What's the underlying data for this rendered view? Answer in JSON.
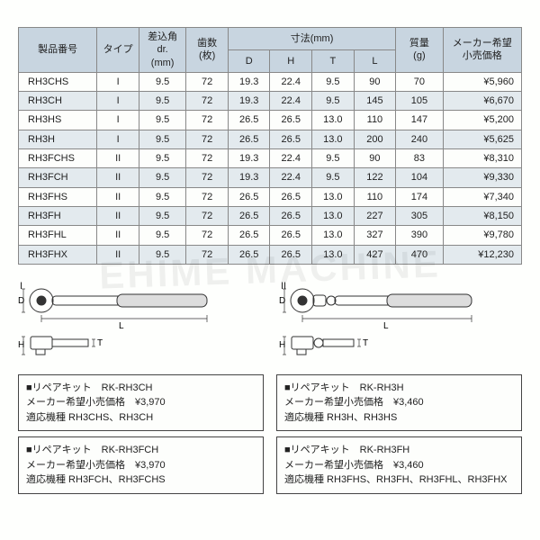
{
  "colors": {
    "header_bg": "#c8d5e0",
    "stripe_bg": "#e3eaee",
    "row_bg": "#fdfefc",
    "border": "#888888",
    "text": "#222222",
    "page_bg": "#fefffd",
    "watermark": "rgba(0,0,0,0.06)"
  },
  "watermark_text": "EHIME MACHINE",
  "table": {
    "col_widths_pct": [
      14,
      8,
      9,
      8,
      8,
      8,
      8,
      8,
      9,
      14
    ],
    "headers": {
      "pn": "製品番号",
      "type": "タイプ",
      "drive": "差込角\ndr.\n(mm)",
      "teeth": "歯数\n(枚)",
      "dims": "寸法(mm)",
      "D": "D",
      "H": "H",
      "T": "T",
      "L": "L",
      "mass": "質量\n(g)",
      "price": "メーカー希望\n小売価格"
    },
    "rows": [
      {
        "pn": "RH3CHS",
        "type": "I",
        "drive": "9.5",
        "teeth": "72",
        "D": "19.3",
        "H": "22.4",
        "T": "9.5",
        "L": "90",
        "mass": "70",
        "price": "¥5,960"
      },
      {
        "pn": "RH3CH",
        "type": "I",
        "drive": "9.5",
        "teeth": "72",
        "D": "19.3",
        "H": "22.4",
        "T": "9.5",
        "L": "145",
        "mass": "105",
        "price": "¥6,670"
      },
      {
        "pn": "RH3HS",
        "type": "I",
        "drive": "9.5",
        "teeth": "72",
        "D": "26.5",
        "H": "26.5",
        "T": "13.0",
        "L": "110",
        "mass": "147",
        "price": "¥5,200"
      },
      {
        "pn": "RH3H",
        "type": "I",
        "drive": "9.5",
        "teeth": "72",
        "D": "26.5",
        "H": "26.5",
        "T": "13.0",
        "L": "200",
        "mass": "240",
        "price": "¥5,625"
      },
      {
        "pn": "RH3FCHS",
        "type": "II",
        "drive": "9.5",
        "teeth": "72",
        "D": "19.3",
        "H": "22.4",
        "T": "9.5",
        "L": "90",
        "mass": "83",
        "price": "¥8,310"
      },
      {
        "pn": "RH3FCH",
        "type": "II",
        "drive": "9.5",
        "teeth": "72",
        "D": "19.3",
        "H": "22.4",
        "T": "9.5",
        "L": "122",
        "mass": "104",
        "price": "¥9,330"
      },
      {
        "pn": "RH3FHS",
        "type": "II",
        "drive": "9.5",
        "teeth": "72",
        "D": "26.5",
        "H": "26.5",
        "T": "13.0",
        "L": "110",
        "mass": "174",
        "price": "¥7,340"
      },
      {
        "pn": "RH3FH",
        "type": "II",
        "drive": "9.5",
        "teeth": "72",
        "D": "26.5",
        "H": "26.5",
        "T": "13.0",
        "L": "227",
        "mass": "305",
        "price": "¥8,150"
      },
      {
        "pn": "RH3FHL",
        "type": "II",
        "drive": "9.5",
        "teeth": "72",
        "D": "26.5",
        "H": "26.5",
        "T": "13.0",
        "L": "327",
        "mass": "390",
        "price": "¥9,780"
      },
      {
        "pn": "RH3FHX",
        "type": "II",
        "drive": "9.5",
        "teeth": "72",
        "D": "26.5",
        "H": "26.5",
        "T": "13.0",
        "L": "427",
        "mass": "470",
        "price": "¥12,230"
      }
    ]
  },
  "diagrams": {
    "type1_label": "I",
    "type2_label": "II",
    "L": "L",
    "D": "D",
    "H": "H",
    "T": "T"
  },
  "kits": [
    {
      "title": "■リペアキット　RK-RH3CH",
      "price_label": "メーカー希望小売価格",
      "price": "¥3,970",
      "models_label": "適応機種",
      "models": "RH3CHS、RH3CH"
    },
    {
      "title": "■リペアキット　RK-RH3H",
      "price_label": "メーカー希望小売価格",
      "price": "¥3,460",
      "models_label": "適応機種",
      "models": "RH3H、RH3HS"
    },
    {
      "title": "■リペアキット　RK-RH3FCH",
      "price_label": "メーカー希望小売価格",
      "price": "¥3,970",
      "models_label": "適応機種",
      "models": "RH3FCH、RH3FCHS"
    },
    {
      "title": "■リペアキット　RK-RH3FH",
      "price_label": "メーカー希望小売価格",
      "price": "¥3,460",
      "models_label": "適応機種",
      "models": "RH3FHS、RH3FH、RH3FHL、RH3FHX"
    }
  ]
}
